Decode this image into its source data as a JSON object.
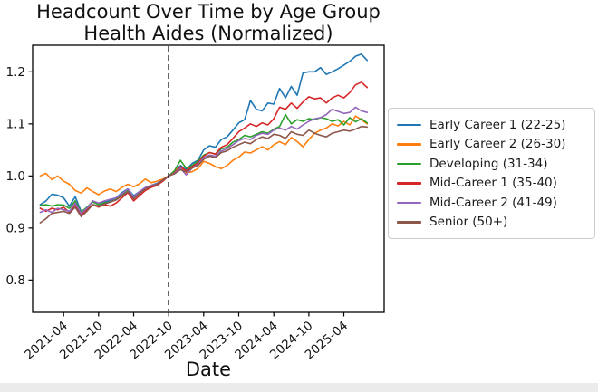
{
  "window": {
    "background": "#ffffff",
    "footer_bar_color": "#ebebeb"
  },
  "chart": {
    "title_line1": "Headcount Over Time by Age Group",
    "title_line2": "Health Aides (Normalized)",
    "xlabel": "Date"
  },
  "chart_data": {
    "type": "line",
    "title": "Headcount Over Time by Age Group",
    "subtitle": "Health Aides (Normalized)",
    "xlabel": "Date",
    "ylabel": "",
    "grid": false,
    "legend_position": "right-outside",
    "axis_color": "#000000",
    "x_monthly": [
      "2020-12",
      "2021-01",
      "2021-02",
      "2021-03",
      "2021-04",
      "2021-05",
      "2021-06",
      "2021-07",
      "2021-08",
      "2021-09",
      "2021-10",
      "2021-11",
      "2021-12",
      "2022-01",
      "2022-02",
      "2022-03",
      "2022-04",
      "2022-05",
      "2022-06",
      "2022-07",
      "2022-08",
      "2022-09",
      "2022-10",
      "2022-11",
      "2022-12",
      "2023-01",
      "2023-02",
      "2023-03",
      "2023-04",
      "2023-05",
      "2023-06",
      "2023-07",
      "2023-08",
      "2023-09",
      "2023-10",
      "2023-11",
      "2023-12",
      "2024-01",
      "2024-02",
      "2024-03",
      "2024-04",
      "2024-05",
      "2024-06",
      "2024-07",
      "2024-08",
      "2024-09",
      "2024-10",
      "2024-11",
      "2024-12",
      "2025-01",
      "2025-02",
      "2025-03",
      "2025-04",
      "2025-05",
      "2025-06",
      "2025-07",
      "2025-08"
    ],
    "xticks": {
      "positions": [
        4,
        10,
        16,
        22,
        28,
        34,
        40,
        46,
        52
      ],
      "labels": [
        "2021-04",
        "2021-10",
        "2022-04",
        "2022-10",
        "2023-04",
        "2023-10",
        "2024-04",
        "2024-10",
        "2025-04"
      ]
    },
    "yticks": [
      "0.8",
      "0.9",
      "1.0",
      "1.1",
      "1.2"
    ],
    "xlim_index": [
      -1.3,
      58.9
    ],
    "ylim": [
      0.738,
      1.251
    ],
    "vline": {
      "x_index": 22,
      "label": "2022-10",
      "style": "dashed",
      "color": "#000000"
    },
    "series": [
      {
        "name": "Early Career 1 (22-25)",
        "color": "#1f77b4",
        "values": [
          0.945,
          0.952,
          0.965,
          0.963,
          0.958,
          0.942,
          0.96,
          0.932,
          0.938,
          0.952,
          0.945,
          0.95,
          0.953,
          0.958,
          0.968,
          0.975,
          0.962,
          0.97,
          0.976,
          0.982,
          0.986,
          0.992,
          1.0,
          1.008,
          1.02,
          1.012,
          1.024,
          1.03,
          1.05,
          1.058,
          1.055,
          1.07,
          1.075,
          1.088,
          1.102,
          1.108,
          1.145,
          1.128,
          1.125,
          1.14,
          1.138,
          1.168,
          1.15,
          1.172,
          1.155,
          1.198,
          1.2,
          1.2,
          1.208,
          1.195,
          1.2,
          1.206,
          1.213,
          1.22,
          1.23,
          1.234,
          1.222
        ]
      },
      {
        "name": "Early Career 2 (26-30)",
        "color": "#ff7f0e",
        "values": [
          1.0,
          1.005,
          0.993,
          1.0,
          0.99,
          0.984,
          0.972,
          0.967,
          0.977,
          0.97,
          0.964,
          0.971,
          0.975,
          0.97,
          0.978,
          0.984,
          0.979,
          0.985,
          0.994,
          0.987,
          0.99,
          0.994,
          1.0,
          1.01,
          1.016,
          1.006,
          1.008,
          1.014,
          1.028,
          1.024,
          1.018,
          1.014,
          1.02,
          1.03,
          1.036,
          1.046,
          1.044,
          1.05,
          1.056,
          1.05,
          1.06,
          1.066,
          1.06,
          1.074,
          1.066,
          1.056,
          1.07,
          1.082,
          1.088,
          1.092,
          1.1,
          1.096,
          1.105,
          1.098,
          1.115,
          1.108,
          1.1
        ]
      },
      {
        "name": "Developing (31-34)",
        "color": "#2ca02c",
        "values": [
          0.943,
          0.945,
          0.942,
          0.945,
          0.944,
          0.938,
          0.952,
          0.93,
          0.94,
          0.95,
          0.945,
          0.948,
          0.95,
          0.955,
          0.965,
          0.972,
          0.958,
          0.968,
          0.976,
          0.98,
          0.984,
          0.99,
          1.0,
          1.01,
          1.03,
          1.015,
          1.02,
          1.028,
          1.04,
          1.045,
          1.042,
          1.052,
          1.055,
          1.065,
          1.07,
          1.078,
          1.075,
          1.08,
          1.085,
          1.082,
          1.09,
          1.095,
          1.118,
          1.1,
          1.108,
          1.105,
          1.11,
          1.108,
          1.112,
          1.11,
          1.105,
          1.108,
          1.098,
          1.112,
          1.104,
          1.11,
          1.102
        ]
      },
      {
        "name": "Mid-Career 1 (35-40)",
        "color": "#d62728",
        "values": [
          0.938,
          0.932,
          0.938,
          0.935,
          0.94,
          0.93,
          0.945,
          0.925,
          0.935,
          0.945,
          0.94,
          0.945,
          0.942,
          0.948,
          0.958,
          0.968,
          0.952,
          0.962,
          0.972,
          0.978,
          0.982,
          0.99,
          1.0,
          1.006,
          1.018,
          1.01,
          1.018,
          1.025,
          1.038,
          1.045,
          1.042,
          1.055,
          1.06,
          1.072,
          1.085,
          1.092,
          1.1,
          1.095,
          1.102,
          1.098,
          1.11,
          1.132,
          1.128,
          1.14,
          1.13,
          1.142,
          1.152,
          1.148,
          1.15,
          1.14,
          1.15,
          1.155,
          1.15,
          1.16,
          1.175,
          1.18,
          1.17
        ]
      },
      {
        "name": "Mid-Career 2 (41-49)",
        "color": "#9467bd",
        "values": [
          0.93,
          0.935,
          0.93,
          0.938,
          0.935,
          0.932,
          0.948,
          0.928,
          0.938,
          0.952,
          0.948,
          0.952,
          0.955,
          0.958,
          0.966,
          0.975,
          0.96,
          0.97,
          0.978,
          0.982,
          0.985,
          0.992,
          1.0,
          1.005,
          1.015,
          1.002,
          1.015,
          1.022,
          1.035,
          1.04,
          1.038,
          1.048,
          1.052,
          1.06,
          1.068,
          1.072,
          1.07,
          1.078,
          1.082,
          1.08,
          1.088,
          1.092,
          1.088,
          1.095,
          1.09,
          1.098,
          1.105,
          1.11,
          1.112,
          1.118,
          1.128,
          1.124,
          1.12,
          1.122,
          1.132,
          1.125,
          1.122
        ]
      },
      {
        "name": "Senior (50+)",
        "color": "#8c564b",
        "values": [
          0.91,
          0.918,
          0.928,
          0.93,
          0.932,
          0.928,
          0.94,
          0.922,
          0.932,
          0.945,
          0.942,
          0.946,
          0.95,
          0.954,
          0.962,
          0.97,
          0.956,
          0.966,
          0.975,
          0.98,
          0.984,
          0.992,
          1.0,
          1.004,
          1.012,
          1.008,
          1.015,
          1.02,
          1.032,
          1.038,
          1.035,
          1.045,
          1.048,
          1.055,
          1.06,
          1.065,
          1.062,
          1.07,
          1.075,
          1.072,
          1.08,
          1.078,
          1.072,
          1.085,
          1.08,
          1.078,
          1.088,
          1.082,
          1.078,
          1.075,
          1.082,
          1.085,
          1.088,
          1.086,
          1.09,
          1.095,
          1.094
        ]
      }
    ]
  }
}
